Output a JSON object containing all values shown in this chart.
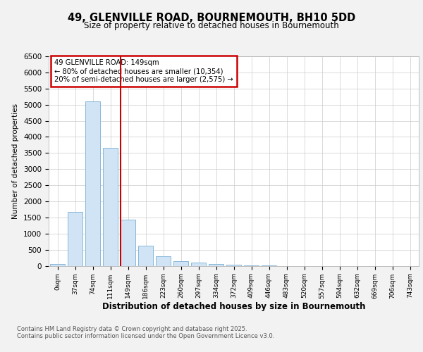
{
  "title_line1": "49, GLENVILLE ROAD, BOURNEMOUTH, BH10 5DD",
  "title_line2": "Size of property relative to detached houses in Bournemouth",
  "xlabel": "Distribution of detached houses by size in Bournemouth",
  "ylabel": "Number of detached properties",
  "bar_labels": [
    "0sqm",
    "37sqm",
    "74sqm",
    "111sqm",
    "149sqm",
    "186sqm",
    "223sqm",
    "260sqm",
    "297sqm",
    "334sqm",
    "372sqm",
    "409sqm",
    "446sqm",
    "483sqm",
    "520sqm",
    "557sqm",
    "594sqm",
    "632sqm",
    "669sqm",
    "706sqm",
    "743sqm"
  ],
  "bar_values": [
    60,
    1670,
    5100,
    3650,
    1430,
    620,
    300,
    150,
    100,
    55,
    30,
    10,
    5,
    0,
    0,
    0,
    0,
    0,
    0,
    0,
    0
  ],
  "bar_color": "#d0e4f5",
  "bar_edge_color": "#7aafd4",
  "ylim": [
    0,
    6500
  ],
  "yticks": [
    0,
    500,
    1000,
    1500,
    2000,
    2500,
    3000,
    3500,
    4000,
    4500,
    5000,
    5500,
    6000,
    6500
  ],
  "vline_index": 4,
  "vline_color": "#cc0000",
  "annotation_title": "49 GLENVILLE ROAD: 149sqm",
  "annotation_line1": "← 80% of detached houses are smaller (10,354)",
  "annotation_line2": "20% of semi-detached houses are larger (2,575) →",
  "annotation_box_color": "#cc0000",
  "footnote1": "Contains HM Land Registry data © Crown copyright and database right 2025.",
  "footnote2": "Contains public sector information licensed under the Open Government Licence v3.0.",
  "bg_color": "#f2f2f2",
  "plot_bg_color": "#ffffff",
  "grid_color": "#cccccc"
}
